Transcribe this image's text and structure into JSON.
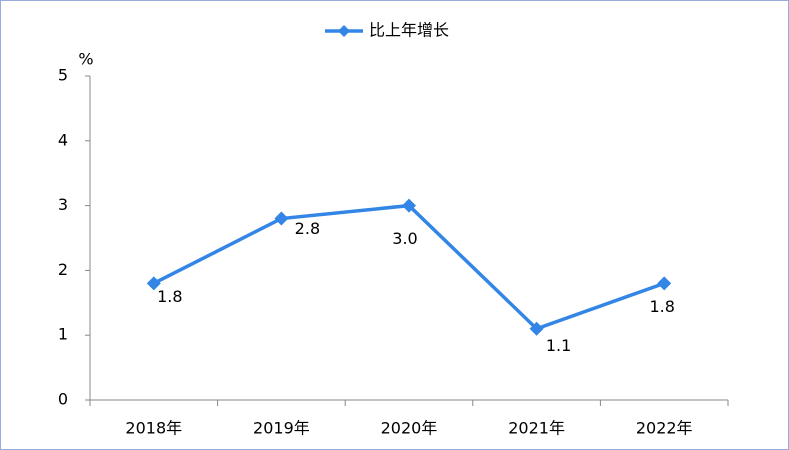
{
  "chart_data": {
    "type": "line",
    "y_label": "%",
    "categories": [
      "2018年",
      "2019年",
      "2020年",
      "2021年",
      "2022年"
    ],
    "series": [
      {
        "name": "比上年增长",
        "color": "#3385e6",
        "values": [
          1.8,
          2.8,
          3.0,
          1.1,
          1.8
        ],
        "value_labels": [
          "1.8",
          "2.8",
          "3.0",
          "1.1",
          "1.8"
        ]
      }
    ],
    "ylim": [
      0,
      5
    ],
    "yticks": [
      0,
      1,
      2,
      3,
      4,
      5
    ],
    "legend": "top"
  }
}
